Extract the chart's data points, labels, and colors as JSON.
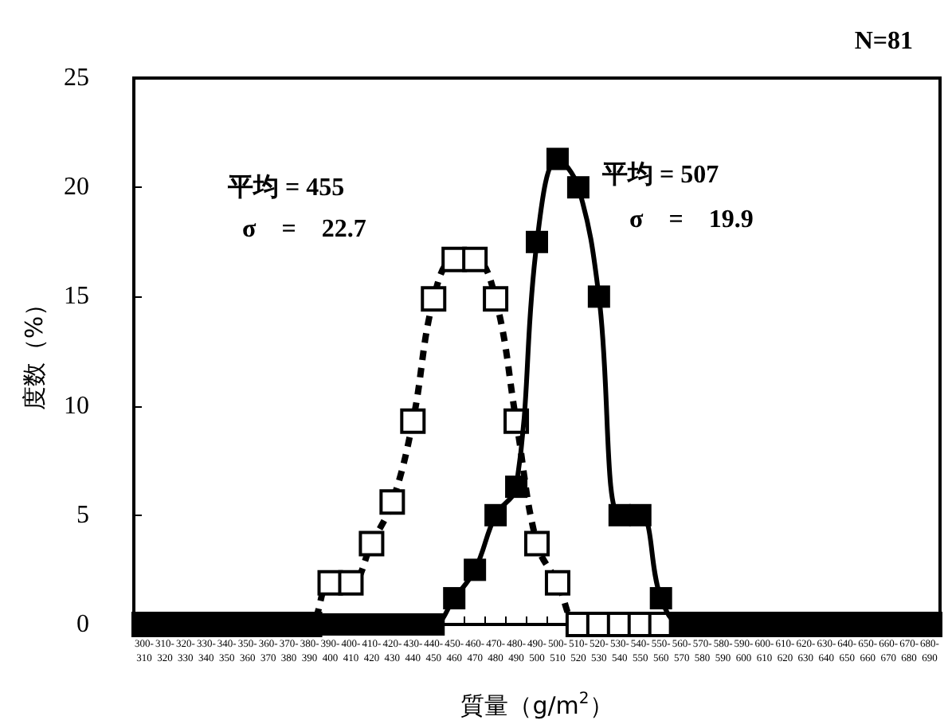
{
  "chart_data": {
    "type": "line",
    "xlabel": "質量（g/m$^{2}$）",
    "ylabel": "度数（%）",
    "categories": [
      "300-310",
      "310-320",
      "320-330",
      "330-340",
      "340-350",
      "350-360",
      "360-370",
      "370-380",
      "380-390",
      "390-400",
      "400-410",
      "410-420",
      "420-430",
      "430-440",
      "440-450",
      "450-460",
      "460-470",
      "470-480",
      "480-490",
      "490-500",
      "500-510",
      "510-520",
      "520-530",
      "530-540",
      "540-550",
      "550-560",
      "560-570",
      "570-580",
      "580-590",
      "590-600",
      "600-610",
      "610-620",
      "620-630",
      "630-640",
      "640-650",
      "650-660",
      "660-670",
      "670-680",
      "680-690"
    ],
    "series": [
      {
        "color": "#000000",
        "line_style": "dashed",
        "values": [
          0,
          0,
          0,
          0,
          0,
          0,
          0,
          0,
          0,
          1.9,
          1.9,
          3.7,
          5.6,
          9.3,
          14.9,
          16.7,
          16.7,
          14.9,
          9.3,
          3.7,
          1.9,
          0,
          0,
          0,
          0,
          0,
          0,
          0,
          0,
          0,
          0,
          0,
          0,
          0,
          0,
          0,
          0,
          0,
          0
        ]
      },
      {
        "color": "#000000",
        "line_style": "solid",
        "values": [
          0,
          0,
          0,
          0,
          0,
          0,
          0,
          0,
          0,
          0,
          0,
          0,
          0,
          0,
          0,
          1.2,
          2.5,
          5.0,
          6.3,
          17.5,
          21.3,
          20.0,
          15.0,
          5.0,
          5.0,
          1.2,
          0,
          0,
          0,
          0,
          0,
          0,
          0,
          0,
          0,
          0,
          0,
          0,
          0
        ]
      }
    ],
    "marker": "square",
    "ylim": [
      0,
      25
    ],
    "yticks": [
      0,
      5,
      10,
      15,
      20,
      25
    ],
    "grid": false,
    "annotations": [
      "N=81",
      "平均 = 455",
      "σ　=　22.7",
      "平均 = 507",
      "σ　=　19.9"
    ]
  }
}
